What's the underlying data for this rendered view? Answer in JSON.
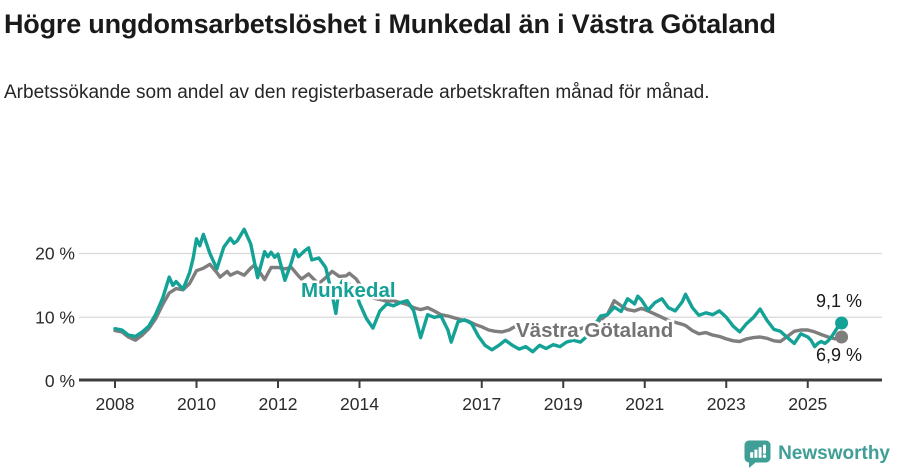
{
  "header": {
    "title": "Högre ungdomsarbetslöshet i Munkedal än i Västra Götaland",
    "subtitle": "Arbetssökande som andel av den registerbaserade arbetskraften månad för månad."
  },
  "chart_data": {
    "type": "line",
    "title": "Högre ungdomsarbetslöshet i Munkedal än i Västra Götaland",
    "subtitle": "Arbetssökande som andel av den registerbaserade arbetskraften månad för månad.",
    "y_unit": "%",
    "xlim": [
      2007.2,
      2026.6
    ],
    "ylim": [
      0,
      26
    ],
    "grid": "horizontal",
    "x_ticks": [
      2008,
      2010,
      2012,
      2014,
      2017,
      2019,
      2021,
      2023,
      2025
    ],
    "y_ticks": [
      {
        "value": 0,
        "label": "0 %"
      },
      {
        "value": 10,
        "label": "10 %"
      },
      {
        "value": 20,
        "label": "20 %"
      }
    ],
    "colors": {
      "munkedal": "#15a296",
      "vastra_gotaland": "#7e7e7e",
      "gridline": "#d9d9d9",
      "axis": "#3d3d3d",
      "annotation": "#1a1a1a"
    },
    "series": [
      {
        "name": "Munkedal",
        "color": "#15a296",
        "label_color": "#15a296",
        "end_label": "9,1 %",
        "end_value": 9.1,
        "points": [
          [
            2008.0,
            8.2
          ],
          [
            2008.17,
            8.0
          ],
          [
            2008.33,
            7.2
          ],
          [
            2008.5,
            7.0
          ],
          [
            2008.67,
            7.7
          ],
          [
            2008.83,
            8.6
          ],
          [
            2009.0,
            10.5
          ],
          [
            2009.17,
            13.0
          ],
          [
            2009.33,
            16.3
          ],
          [
            2009.42,
            15.0
          ],
          [
            2009.5,
            15.6
          ],
          [
            2009.67,
            14.4
          ],
          [
            2009.83,
            17.0
          ],
          [
            2009.92,
            19.3
          ],
          [
            2010.0,
            22.3
          ],
          [
            2010.08,
            21.2
          ],
          [
            2010.17,
            23.0
          ],
          [
            2010.33,
            20.0
          ],
          [
            2010.5,
            17.6
          ],
          [
            2010.67,
            21.0
          ],
          [
            2010.83,
            22.4
          ],
          [
            2010.92,
            21.6
          ],
          [
            2011.0,
            22.0
          ],
          [
            2011.17,
            23.8
          ],
          [
            2011.33,
            21.5
          ],
          [
            2011.5,
            16.2
          ],
          [
            2011.67,
            20.3
          ],
          [
            2011.75,
            19.5
          ],
          [
            2011.83,
            20.2
          ],
          [
            2011.92,
            19.4
          ],
          [
            2012.0,
            19.9
          ],
          [
            2012.17,
            15.8
          ],
          [
            2012.33,
            18.6
          ],
          [
            2012.42,
            20.6
          ],
          [
            2012.5,
            19.5
          ],
          [
            2012.67,
            20.5
          ],
          [
            2012.75,
            20.9
          ],
          [
            2012.83,
            19.0
          ],
          [
            2013.0,
            19.3
          ],
          [
            2013.17,
            17.8
          ],
          [
            2013.33,
            13.5
          ],
          [
            2013.42,
            10.6
          ],
          [
            2013.5,
            14.6
          ],
          [
            2013.58,
            15.7
          ],
          [
            2013.75,
            15.2
          ],
          [
            2013.92,
            13.8
          ],
          [
            2014.0,
            12.2
          ],
          [
            2014.17,
            9.8
          ],
          [
            2014.33,
            8.3
          ],
          [
            2014.5,
            11.0
          ],
          [
            2014.67,
            12.1
          ],
          [
            2014.83,
            11.8
          ],
          [
            2015.0,
            12.3
          ],
          [
            2015.17,
            12.6
          ],
          [
            2015.33,
            11.0
          ],
          [
            2015.5,
            6.8
          ],
          [
            2015.67,
            10.4
          ],
          [
            2015.83,
            10.0
          ],
          [
            2016.0,
            10.2
          ],
          [
            2016.17,
            8.0
          ],
          [
            2016.25,
            6.1
          ],
          [
            2016.42,
            9.3
          ],
          [
            2016.58,
            9.6
          ],
          [
            2016.75,
            9.0
          ],
          [
            2016.92,
            7.0
          ],
          [
            2017.08,
            5.6
          ],
          [
            2017.25,
            4.9
          ],
          [
            2017.42,
            5.6
          ],
          [
            2017.58,
            6.4
          ],
          [
            2017.75,
            5.6
          ],
          [
            2017.92,
            5.0
          ],
          [
            2018.08,
            5.4
          ],
          [
            2018.25,
            4.6
          ],
          [
            2018.42,
            5.6
          ],
          [
            2018.58,
            5.1
          ],
          [
            2018.75,
            5.7
          ],
          [
            2018.92,
            5.4
          ],
          [
            2019.08,
            6.1
          ],
          [
            2019.25,
            6.4
          ],
          [
            2019.42,
            6.1
          ],
          [
            2019.58,
            7.0
          ],
          [
            2019.75,
            8.6
          ],
          [
            2019.92,
            10.2
          ],
          [
            2020.08,
            10.4
          ],
          [
            2020.25,
            11.6
          ],
          [
            2020.42,
            10.9
          ],
          [
            2020.58,
            12.9
          ],
          [
            2020.75,
            12.1
          ],
          [
            2020.83,
            13.3
          ],
          [
            2020.92,
            12.7
          ],
          [
            2021.08,
            11.1
          ],
          [
            2021.25,
            12.3
          ],
          [
            2021.42,
            12.9
          ],
          [
            2021.58,
            11.5
          ],
          [
            2021.75,
            11.0
          ],
          [
            2021.92,
            12.4
          ],
          [
            2022.0,
            13.6
          ],
          [
            2022.17,
            11.5
          ],
          [
            2022.33,
            10.3
          ],
          [
            2022.5,
            10.7
          ],
          [
            2022.67,
            10.4
          ],
          [
            2022.83,
            11.0
          ],
          [
            2023.0,
            10.0
          ],
          [
            2023.17,
            8.6
          ],
          [
            2023.33,
            7.7
          ],
          [
            2023.5,
            9.0
          ],
          [
            2023.67,
            10.0
          ],
          [
            2023.83,
            11.3
          ],
          [
            2024.0,
            9.5
          ],
          [
            2024.17,
            8.1
          ],
          [
            2024.33,
            7.8
          ],
          [
            2024.5,
            6.8
          ],
          [
            2024.67,
            5.9
          ],
          [
            2024.83,
            7.4
          ],
          [
            2025.0,
            6.9
          ],
          [
            2025.08,
            6.4
          ],
          [
            2025.17,
            5.4
          ],
          [
            2025.25,
            5.9
          ],
          [
            2025.33,
            6.2
          ],
          [
            2025.42,
            5.9
          ],
          [
            2025.5,
            6.3
          ],
          [
            2025.58,
            6.9
          ],
          [
            2025.67,
            7.8
          ],
          [
            2025.75,
            8.6
          ],
          [
            2025.83,
            9.1
          ]
        ]
      },
      {
        "name": "Västra Götaland",
        "color": "#7e7e7e",
        "label_color": "#737373",
        "end_label": "6,9 %",
        "end_value": 6.9,
        "points": [
          [
            2008.0,
            7.9
          ],
          [
            2008.17,
            7.7
          ],
          [
            2008.33,
            6.9
          ],
          [
            2008.5,
            6.4
          ],
          [
            2008.67,
            7.2
          ],
          [
            2008.83,
            8.2
          ],
          [
            2009.0,
            9.8
          ],
          [
            2009.17,
            12.0
          ],
          [
            2009.33,
            13.8
          ],
          [
            2009.5,
            14.5
          ],
          [
            2009.67,
            14.3
          ],
          [
            2009.83,
            15.3
          ],
          [
            2010.0,
            17.3
          ],
          [
            2010.17,
            17.7
          ],
          [
            2010.33,
            18.3
          ],
          [
            2010.5,
            17.0
          ],
          [
            2010.58,
            16.3
          ],
          [
            2010.75,
            17.2
          ],
          [
            2010.83,
            16.6
          ],
          [
            2011.0,
            17.1
          ],
          [
            2011.17,
            16.6
          ],
          [
            2011.33,
            17.7
          ],
          [
            2011.42,
            18.2
          ],
          [
            2011.58,
            16.8
          ],
          [
            2011.67,
            15.9
          ],
          [
            2011.83,
            17.8
          ],
          [
            2012.0,
            17.8
          ],
          [
            2012.17,
            17.6
          ],
          [
            2012.33,
            17.8
          ],
          [
            2012.5,
            16.5
          ],
          [
            2012.58,
            16.0
          ],
          [
            2012.75,
            16.8
          ],
          [
            2012.92,
            15.7
          ],
          [
            2013.0,
            15.3
          ],
          [
            2013.17,
            16.2
          ],
          [
            2013.33,
            17.2
          ],
          [
            2013.5,
            16.4
          ],
          [
            2013.67,
            16.5
          ],
          [
            2013.75,
            16.9
          ],
          [
            2013.92,
            16.0
          ],
          [
            2014.0,
            15.2
          ],
          [
            2014.17,
            13.8
          ],
          [
            2014.33,
            13.0
          ],
          [
            2014.5,
            12.8
          ],
          [
            2014.67,
            12.5
          ],
          [
            2014.83,
            12.6
          ],
          [
            2015.0,
            12.3
          ],
          [
            2015.17,
            12.0
          ],
          [
            2015.33,
            11.5
          ],
          [
            2015.5,
            11.2
          ],
          [
            2015.67,
            11.5
          ],
          [
            2015.83,
            11.0
          ],
          [
            2016.0,
            10.4
          ],
          [
            2016.17,
            10.2
          ],
          [
            2016.33,
            9.9
          ],
          [
            2016.5,
            9.6
          ],
          [
            2016.67,
            9.4
          ],
          [
            2016.83,
            8.9
          ],
          [
            2017.0,
            8.5
          ],
          [
            2017.17,
            8.0
          ],
          [
            2017.33,
            7.8
          ],
          [
            2017.5,
            7.7
          ],
          [
            2017.67,
            8.0
          ],
          [
            2017.83,
            8.6
          ],
          [
            2017.92,
            7.8
          ],
          [
            2018.08,
            8.2
          ],
          [
            2018.25,
            7.6
          ],
          [
            2018.42,
            7.8
          ],
          [
            2018.58,
            7.5
          ],
          [
            2018.75,
            7.8
          ],
          [
            2018.92,
            7.6
          ],
          [
            2019.08,
            7.8
          ],
          [
            2019.25,
            8.0
          ],
          [
            2019.42,
            8.2
          ],
          [
            2019.58,
            8.5
          ],
          [
            2019.75,
            8.9
          ],
          [
            2019.92,
            9.6
          ],
          [
            2020.08,
            10.4
          ],
          [
            2020.25,
            12.6
          ],
          [
            2020.42,
            11.8
          ],
          [
            2020.58,
            11.2
          ],
          [
            2020.75,
            11.0
          ],
          [
            2020.92,
            11.4
          ],
          [
            2021.08,
            11.0
          ],
          [
            2021.25,
            10.5
          ],
          [
            2021.42,
            10.0
          ],
          [
            2021.58,
            9.5
          ],
          [
            2021.75,
            9.2
          ],
          [
            2021.92,
            8.9
          ],
          [
            2022.0,
            8.7
          ],
          [
            2022.17,
            7.9
          ],
          [
            2022.33,
            7.4
          ],
          [
            2022.5,
            7.6
          ],
          [
            2022.67,
            7.2
          ],
          [
            2022.83,
            7.0
          ],
          [
            2023.0,
            6.6
          ],
          [
            2023.17,
            6.3
          ],
          [
            2023.33,
            6.2
          ],
          [
            2023.5,
            6.6
          ],
          [
            2023.67,
            6.8
          ],
          [
            2023.83,
            6.9
          ],
          [
            2024.0,
            6.7
          ],
          [
            2024.17,
            6.3
          ],
          [
            2024.33,
            6.2
          ],
          [
            2024.5,
            7.0
          ],
          [
            2024.67,
            7.8
          ],
          [
            2024.83,
            8.0
          ],
          [
            2025.0,
            8.0
          ],
          [
            2025.17,
            7.7
          ],
          [
            2025.33,
            7.3
          ],
          [
            2025.5,
            6.9
          ],
          [
            2025.67,
            6.6
          ],
          [
            2025.83,
            6.9
          ]
        ]
      }
    ],
    "legend_position": "inline-labels"
  },
  "footer": {
    "brand": "Newsworthy",
    "brand_color": "#3f9e96"
  }
}
